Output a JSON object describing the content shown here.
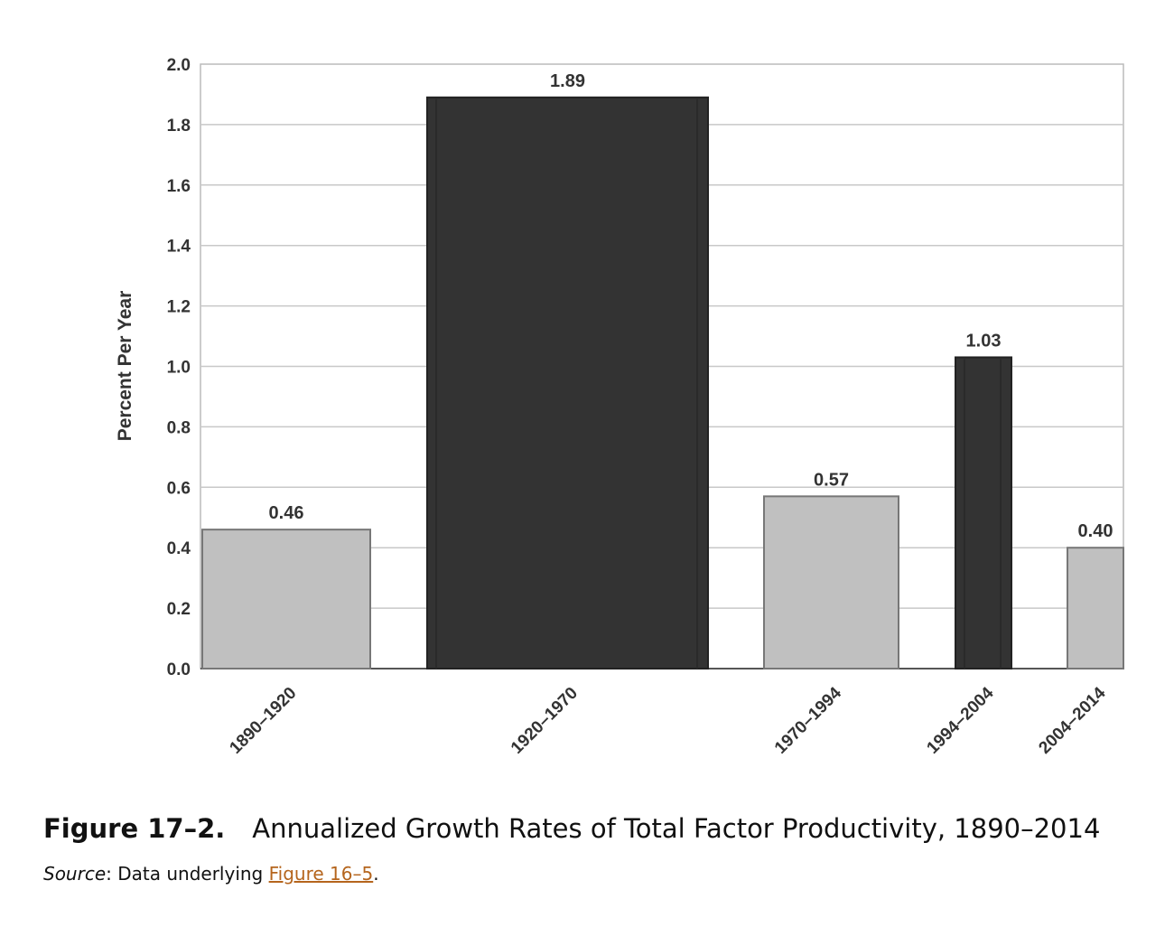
{
  "chart_data": {
    "type": "bar",
    "categories": [
      "1890–1920",
      "1920–1970",
      "1970–1994",
      "1994–2004",
      "2004–2014"
    ],
    "values": [
      0.46,
      1.89,
      0.57,
      1.03,
      0.4
    ],
    "value_labels": [
      "0.46",
      "1.89",
      "0.57",
      "1.03",
      "0.40"
    ],
    "bar_colors": [
      "#c0c0c0",
      "#333333",
      "#c0c0c0",
      "#333333",
      "#c0c0c0"
    ],
    "ylabel": "Percent Per Year",
    "ylim": [
      0,
      2.0
    ],
    "yticks": [
      "0.0",
      "0.2",
      "0.4",
      "0.6",
      "0.8",
      "1.0",
      "1.2",
      "1.4",
      "1.6",
      "1.8",
      "2.0"
    ],
    "grid": true
  },
  "caption": {
    "figure_number": "Figure 17–2.",
    "title": "Annualized Growth Rates of Total Factor Productivity, 1890–2014"
  },
  "source": {
    "label": "Source",
    "separator": ":",
    "text": " Data underlying ",
    "link_text": "Figure 16–5",
    "end": "."
  }
}
